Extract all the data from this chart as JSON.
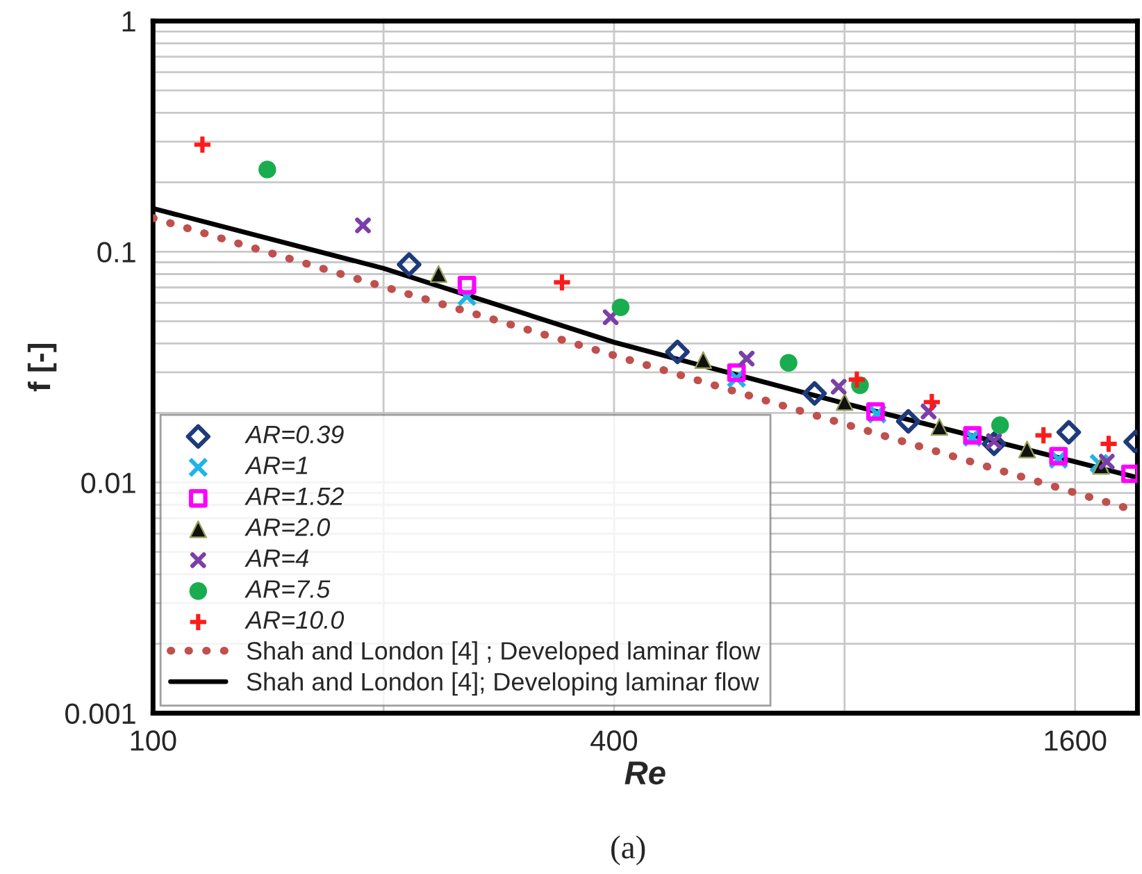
{
  "chart_data": {
    "type": "scatter",
    "xlabel": "Re",
    "ylabel": "f [-]",
    "log": "xy",
    "grid": true,
    "legend": "bottom left",
    "xlim": [
      100,
      1930
    ],
    "ylim": [
      0.001,
      1
    ],
    "xticks": [
      100,
      {
        "value": 200,
        "label": null
      },
      400,
      {
        "value": 800,
        "label": null
      },
      1600
    ],
    "yticks": [
      0.001,
      0.01,
      0.1,
      1
    ],
    "annotations": [
      "(a)"
    ],
    "series": [
      {
        "name": "AR=0.39",
        "color": "#1f3a7a",
        "marker": "diamond",
        "x": [
          216,
          484,
          731,
          969,
          1254,
          1570,
          1920
        ],
        "values": [
          0.088,
          0.0368,
          0.0243,
          0.0184,
          0.0147,
          0.0165,
          0.015
        ]
      },
      {
        "name": "AR=1",
        "color": "#1fb4e8",
        "marker": "x",
        "x": [
          257,
          578,
          882,
          1175,
          1522,
          1720
        ],
        "values": [
          0.064,
          0.0283,
          0.0198,
          0.0157,
          0.0126,
          0.0121
        ]
      },
      {
        "name": "AR=1.52",
        "color": "#ff00ff",
        "marker": "square",
        "x": [
          257,
          578,
          878,
          1175,
          1522,
          1890
        ],
        "values": [
          0.0717,
          0.0299,
          0.0203,
          0.016,
          0.013,
          0.0109
        ]
      },
      {
        "name": "AR=2.0",
        "color": "#111111",
        "marker": "triangle",
        "x": [
          236,
          523,
          800,
          1064,
          1385,
          1730
        ],
        "values": [
          0.08,
          0.0339,
          0.0223,
          0.0174,
          0.0139,
          0.0118
        ]
      },
      {
        "name": "AR=4",
        "color": "#7a3fa8",
        "marker": "star",
        "x": [
          188,
          396,
          596,
          786,
          1030,
          1254,
          1760
        ],
        "values": [
          0.13,
          0.052,
          0.0344,
          0.026,
          0.0203,
          0.0151,
          0.0123
        ]
      },
      {
        "name": "AR=7.5",
        "color": "#1aad4f",
        "marker": "circle",
        "x": [
          141,
          408,
          676,
          838,
          1277
        ],
        "values": [
          0.227,
          0.0574,
          0.033,
          0.0264,
          0.0177
        ]
      },
      {
        "name": "AR=10.0",
        "color": "#ff1a1a",
        "marker": "cross",
        "x": [
          116,
          342,
          830,
          1040,
          1455,
          1770
        ],
        "values": [
          0.291,
          0.0737,
          0.0279,
          0.0223,
          0.016,
          0.0147
        ]
      },
      {
        "name": "Shah and London [4] ; Developed laminar flow",
        "type": "line",
        "line_style": "dotted",
        "color": "#c0504d",
        "x": [
          100,
          1930
        ],
        "values": [
          0.14,
          0.0075
        ]
      },
      {
        "name": "Shah and London [4]; Developing laminar flow",
        "type": "line",
        "line_style": "solid",
        "color": "#000000",
        "x": [
          100,
          200,
          400,
          800,
          1930
        ],
        "values": [
          0.154,
          0.0847,
          0.0405,
          0.022,
          0.0105
        ]
      }
    ]
  }
}
